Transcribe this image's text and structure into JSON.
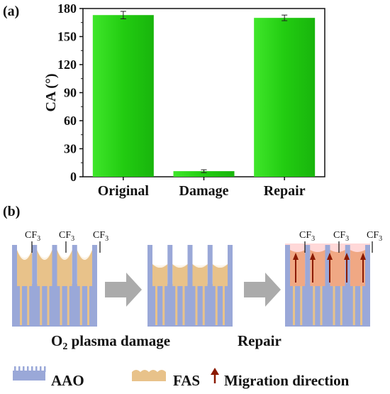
{
  "panel_a_label": "(a)",
  "panel_b_label": "(b)",
  "chart_data": {
    "type": "bar",
    "categories": [
      "Original",
      "Damage",
      "Repair"
    ],
    "values": [
      173,
      6,
      170
    ],
    "errors": [
      4,
      1.5,
      3
    ],
    "ylabel": "CA (°)",
    "xlabel": "",
    "ylim": [
      0,
      180
    ],
    "yticks": [
      0,
      30,
      60,
      90,
      120,
      150,
      180
    ],
    "bar_color": "#22cc11",
    "grid": false
  },
  "diagram": {
    "cf3_main": "CF",
    "cf3_sub": "3",
    "step1_caption_main": "O",
    "step1_caption_sub": "2",
    "step1_caption_rest": " plasma damage",
    "step2_caption": "Repair",
    "colors": {
      "aao": "#9aa8d8",
      "fas": "#e8c28a",
      "arrow_gray": "#aaaaaa",
      "migration": "#8b1a00",
      "glow": "#ff9090"
    }
  },
  "legend": {
    "items": [
      {
        "label": "AAO",
        "icon": "aao-swatch-icon"
      },
      {
        "label": "FAS",
        "icon": "fas-swatch-icon"
      },
      {
        "label": "Migration direction",
        "icon": "migration-arrow-icon"
      }
    ]
  }
}
